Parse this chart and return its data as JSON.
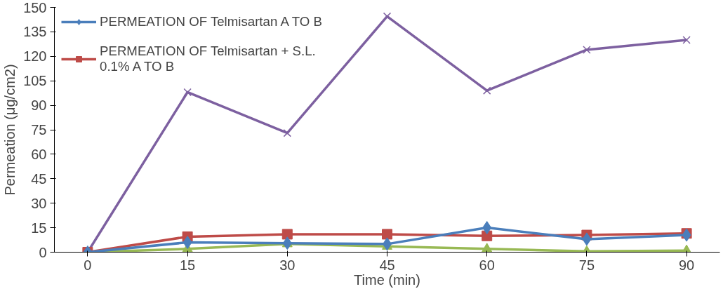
{
  "chart_data": {
    "type": "line",
    "xlabel": "Time (min)",
    "ylabel": "Permeation (μg/cm2)",
    "x": [
      0,
      15,
      30,
      45,
      60,
      75,
      90
    ],
    "series": [
      {
        "name": "PERMEATION OF Telmisartan A TO B",
        "color": "#4a7ebb",
        "marker": "diamond",
        "values": [
          0,
          6,
          5.5,
          5,
          15,
          8,
          10.5
        ]
      },
      {
        "name": "PERMEATION OF Telmisartan + S.L. 0.1% A TO B",
        "color": "#be4b48",
        "marker": "square",
        "values": [
          0,
          9.5,
          11,
          11,
          10,
          10.5,
          11.5
        ]
      },
      {
        "color": "#98b954",
        "marker": "triangle",
        "values": [
          0,
          2,
          5,
          3.5,
          2,
          0.5,
          1
        ]
      },
      {
        "color": "#7d60a0",
        "marker": "cross",
        "values": [
          0,
          98,
          73,
          144.5,
          99,
          124,
          130
        ]
      }
    ],
    "xlim": [
      -5,
      95
    ],
    "xticks": [
      0,
      15,
      30,
      45,
      60,
      75,
      90
    ],
    "ylim": [
      0,
      150
    ],
    "yticks": [
      0,
      15,
      30,
      45,
      60,
      75,
      90,
      105,
      120,
      135,
      150
    ],
    "grid": false,
    "legend": "top left"
  }
}
